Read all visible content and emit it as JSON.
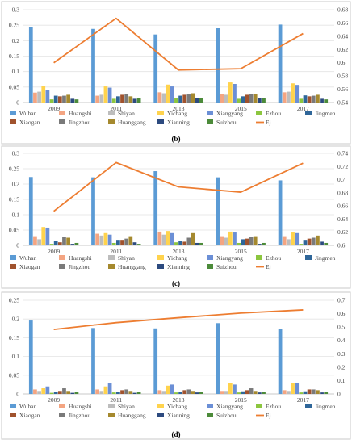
{
  "colors": {
    "Wuhan": "#5b9bd5",
    "Huangshi": "#f4a582",
    "Shiyan": "#bdbdbd",
    "Yichang": "#ffd34d",
    "Xiangyang": "#6b8fd6",
    "Ezhou": "#8cc63f",
    "Jingmen": "#2f6699",
    "Xiaogan": "#a0522d",
    "Jingzhou": "#7a7a7a",
    "Huanggang": "#a5892e",
    "Xianning": "#2c4a7f",
    "Suizhou": "#4c8b3a",
    "Ej": "#ed7d31",
    "frame": "#c8c8c8",
    "grid": "#e3e3e3"
  },
  "chart_data": [
    {
      "type": "bar",
      "caption": "(b)",
      "categories": [
        "2009",
        "2011",
        "2013",
        "2015",
        "2017"
      ],
      "ylim": [
        0,
        0.3
      ],
      "yticks": [
        "0",
        "0.05",
        "0.1",
        "0.15",
        "0.2",
        "0.25",
        "0.3"
      ],
      "y2lim": [
        0.54,
        0.68
      ],
      "y2ticks": [
        "0.54",
        "0.56",
        "0.58",
        "0.6",
        "0.62",
        "0.64",
        "0.66",
        "0.68"
      ],
      "grid": true,
      "series": [
        {
          "name": "Wuhan",
          "values": [
            0.243,
            0.238,
            0.22,
            0.24,
            0.252
          ]
        },
        {
          "name": "Huangshi",
          "values": [
            0.032,
            0.022,
            0.033,
            0.028,
            0.033
          ]
        },
        {
          "name": "Shiyan",
          "values": [
            0.035,
            0.025,
            0.03,
            0.025,
            0.035
          ]
        },
        {
          "name": "Yichang",
          "values": [
            0.053,
            0.052,
            0.058,
            0.065,
            0.062
          ]
        },
        {
          "name": "Xiangyang",
          "values": [
            0.04,
            0.048,
            0.052,
            0.06,
            0.057
          ]
        },
        {
          "name": "Ezhou",
          "values": [
            0.01,
            0.012,
            0.015,
            0.012,
            0.012
          ]
        },
        {
          "name": "Jingmen",
          "values": [
            0.022,
            0.02,
            0.022,
            0.02,
            0.023
          ]
        },
        {
          "name": "Xiaogan",
          "values": [
            0.02,
            0.025,
            0.025,
            0.025,
            0.02
          ]
        },
        {
          "name": "Jingzhou",
          "values": [
            0.022,
            0.028,
            0.026,
            0.028,
            0.022
          ]
        },
        {
          "name": "Huanggang",
          "values": [
            0.025,
            0.02,
            0.03,
            0.028,
            0.025
          ]
        },
        {
          "name": "Xianning",
          "values": [
            0.012,
            0.012,
            0.015,
            0.015,
            0.012
          ]
        },
        {
          "name": "Suizhou",
          "values": [
            0.01,
            0.015,
            0.015,
            0.015,
            0.01
          ]
        }
      ],
      "line": {
        "name": "Ej",
        "axis": "right",
        "values": [
          0.6,
          0.667,
          0.589,
          0.591,
          0.644
        ]
      }
    },
    {
      "type": "bar",
      "caption": "(c)",
      "categories": [
        "2009",
        "2011",
        "2013",
        "2015",
        "2017"
      ],
      "ylim": [
        0,
        0.3
      ],
      "yticks": [
        "0",
        "0.05",
        "0.1",
        "0.15",
        "0.2",
        "0.25",
        "0.3"
      ],
      "y2lim": [
        0.6,
        0.74
      ],
      "y2ticks": [
        "0.6",
        "0.62",
        "0.64",
        "0.66",
        "0.68",
        "0.7",
        "0.72",
        "0.74"
      ],
      "grid": true,
      "series": [
        {
          "name": "Wuhan",
          "values": [
            0.223,
            0.222,
            0.242,
            0.222,
            0.212
          ]
        },
        {
          "name": "Huangshi",
          "values": [
            0.03,
            0.038,
            0.045,
            0.03,
            0.03
          ]
        },
        {
          "name": "Shiyan",
          "values": [
            0.02,
            0.032,
            0.035,
            0.025,
            0.02
          ]
        },
        {
          "name": "Yichang",
          "values": [
            0.06,
            0.04,
            0.047,
            0.045,
            0.042
          ]
        },
        {
          "name": "Xiangyang",
          "values": [
            0.058,
            0.035,
            0.04,
            0.042,
            0.04
          ]
        },
        {
          "name": "Ezhou",
          "values": [
            0.005,
            0.008,
            0.01,
            0.008,
            0.005
          ]
        },
        {
          "name": "Jingmen",
          "values": [
            0.015,
            0.018,
            0.015,
            0.02,
            0.018
          ]
        },
        {
          "name": "Xiaogan",
          "values": [
            0.01,
            0.018,
            0.012,
            0.022,
            0.022
          ]
        },
        {
          "name": "Jingzhou",
          "values": [
            0.028,
            0.022,
            0.025,
            0.028,
            0.025
          ]
        },
        {
          "name": "Huanggang",
          "values": [
            0.025,
            0.03,
            0.04,
            0.03,
            0.032
          ]
        },
        {
          "name": "Xianning",
          "values": [
            0.005,
            0.01,
            0.008,
            0.005,
            0.012
          ]
        },
        {
          "name": "Suizhou",
          "values": [
            0.008,
            0.005,
            0.008,
            0.008,
            0.008
          ]
        }
      ],
      "line": {
        "name": "Ej",
        "axis": "right",
        "values": [
          0.652,
          0.726,
          0.689,
          0.681,
          0.725
        ]
      }
    },
    {
      "type": "bar",
      "caption": "(d)",
      "categories": [
        "2009",
        "2011",
        "2013",
        "2015",
        "2017"
      ],
      "ylim": [
        0,
        0.25
      ],
      "yticks": [
        "0",
        "0.05",
        "0.1",
        "0.15",
        "0.2",
        "0.25"
      ],
      "y2lim": [
        0,
        0.7
      ],
      "y2ticks": [
        "0",
        "0.1",
        "0.2",
        "0.3",
        "0.4",
        "0.5",
        "0.6",
        "0.7"
      ],
      "grid": true,
      "series": [
        {
          "name": "Wuhan",
          "values": [
            0.196,
            0.176,
            0.175,
            0.189,
            0.173
          ]
        },
        {
          "name": "Huangshi",
          "values": [
            0.012,
            0.012,
            0.01,
            0.008,
            0.01
          ]
        },
        {
          "name": "Shiyan",
          "values": [
            0.008,
            0.008,
            0.008,
            0.008,
            0.008
          ]
        },
        {
          "name": "Yichang",
          "values": [
            0.015,
            0.02,
            0.022,
            0.03,
            0.028
          ]
        },
        {
          "name": "Xiangyang",
          "values": [
            0.02,
            0.028,
            0.025,
            0.025,
            0.03
          ]
        },
        {
          "name": "Ezhou",
          "values": [
            0.003,
            0.004,
            0.004,
            0.004,
            0.004
          ]
        },
        {
          "name": "Jingmen",
          "values": [
            0.005,
            0.006,
            0.006,
            0.007,
            0.007
          ]
        },
        {
          "name": "Xiaogan",
          "values": [
            0.008,
            0.01,
            0.01,
            0.01,
            0.012
          ]
        },
        {
          "name": "Jingzhou",
          "values": [
            0.015,
            0.012,
            0.012,
            0.015,
            0.012
          ]
        },
        {
          "name": "Huanggang",
          "values": [
            0.008,
            0.008,
            0.008,
            0.008,
            0.01
          ]
        },
        {
          "name": "Xianning",
          "values": [
            0.003,
            0.003,
            0.004,
            0.004,
            0.004
          ]
        },
        {
          "name": "Suizhou",
          "values": [
            0.005,
            0.005,
            0.005,
            0.005,
            0.005
          ]
        }
      ],
      "line": {
        "name": "Ej",
        "axis": "right",
        "values": [
          0.482,
          0.533,
          0.57,
          0.604,
          0.628
        ]
      }
    }
  ]
}
